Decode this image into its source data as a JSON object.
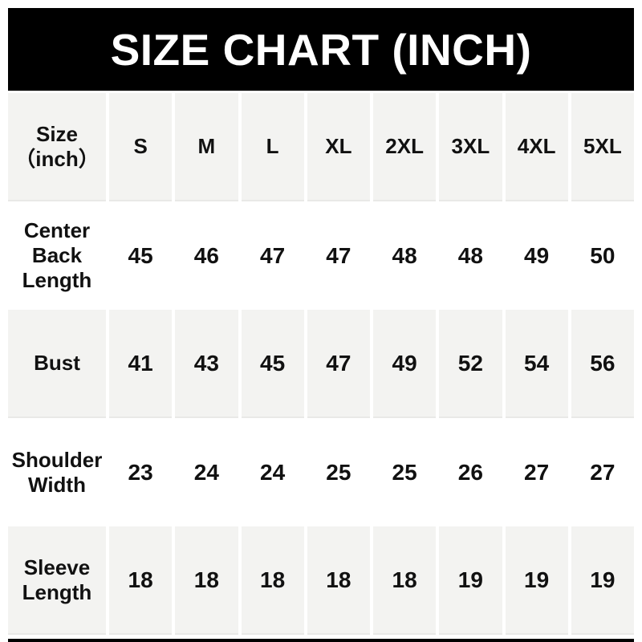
{
  "title": "SIZE CHART (INCH)",
  "colors": {
    "banner_bg": "#000000",
    "banner_text": "#ffffff",
    "shaded_cell_bg": "#f3f3f1",
    "text": "#111111"
  },
  "corner": {
    "line1": "Size",
    "line2": "（inch）"
  },
  "chart_data": {
    "type": "table",
    "title": "SIZE CHART (INCH)",
    "corner_label": "Size（inch）",
    "columns": [
      "S",
      "M",
      "L",
      "XL",
      "2XL",
      "3XL",
      "4XL",
      "5XL"
    ],
    "rows": [
      {
        "label": "Center Back Length",
        "values": [
          45,
          46,
          47,
          47,
          48,
          48,
          49,
          50
        ]
      },
      {
        "label": "Bust",
        "values": [
          41,
          43,
          45,
          47,
          49,
          52,
          54,
          56
        ]
      },
      {
        "label": "Shoulder Width",
        "values": [
          23,
          24,
          24,
          25,
          25,
          26,
          27,
          27
        ]
      },
      {
        "label": "Sleeve Length",
        "values": [
          18,
          18,
          18,
          18,
          18,
          19,
          19,
          19
        ]
      }
    ]
  }
}
